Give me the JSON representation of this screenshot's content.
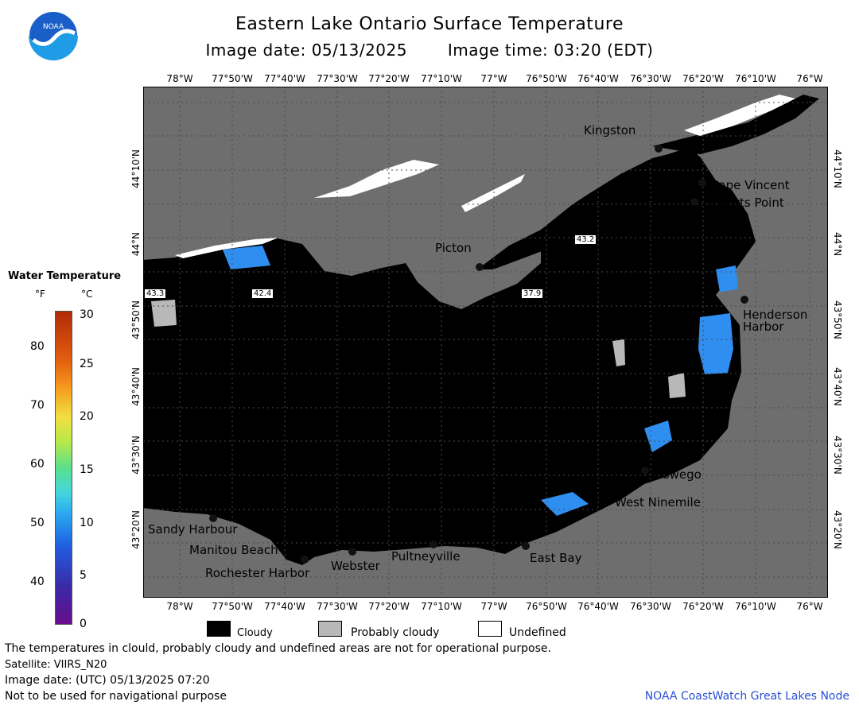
{
  "title": "Eastern Lake Ontario Surface Temperature",
  "image_date_label": "Image date: 05/13/2025",
  "image_time_label": "Image time: 03:20 (EDT)",
  "logo": {
    "text": "NOAA",
    "icon": "noaa-logo-icon"
  },
  "axes": {
    "longitude_ticks": [
      "78°W",
      "77°50'W",
      "77°40'W",
      "77°30'W",
      "77°20'W",
      "77°10'W",
      "77°W",
      "76°50'W",
      "76°40'W",
      "76°30'W",
      "76°20'W",
      "76°10'W",
      "76°W"
    ],
    "latitude_ticks": [
      "44°10'N",
      "44°N",
      "43°50'N",
      "43°40'N",
      "43°30'N",
      "43°20'N"
    ]
  },
  "places": {
    "kingston": "Kingston",
    "cape_vincent": "Cape Vincent",
    "tibbetts_point": "Tibbetts Point",
    "picton": "Picton",
    "henderson_harbor_1": "Henderson",
    "henderson_harbor_2": "Harbor",
    "oswego": "Oswego",
    "west_ninemile": "West Ninemile",
    "sandy_harbour": "Sandy Harbour",
    "manitou_beach": "Manitou Beach",
    "rochester_harbor": "Rochester Harbor",
    "webster": "Webster",
    "pultneyville": "Pultneyville",
    "east_bay": "East Bay"
  },
  "buoy_readings": {
    "b1": "43.3",
    "b2": "42.4",
    "b3": "37.9",
    "b4": "43.2"
  },
  "legend": {
    "title": "Water Temperature",
    "unit_f": "°F",
    "unit_c": "°C",
    "f_ticks": [
      "80",
      "70",
      "60",
      "50",
      "40"
    ],
    "c_ticks": [
      "30",
      "25",
      "20",
      "15",
      "10",
      "5",
      "0"
    ],
    "cloudy": "Cloudy",
    "probably_cloudy": "Probably cloudy",
    "undefined": "Undefined"
  },
  "footer": {
    "disclaimer": "The temperatures in clould, probably cloudy and undefined areas are not for operational purpose.",
    "satellite": "Satellite: VIIRS_N20",
    "utc_date": "Image date: (UTC) 05/13/2025  07:20",
    "navigation": "Not to be used for navigational purpose",
    "credit": "NOAA CoastWatch Great Lakes Node"
  },
  "colors": {
    "land": "#6e6e6e",
    "cloudy": "#000000",
    "probably_cloudy": "#b8b8b8",
    "undefined": "#ffffff",
    "water_cold": "#2f8ff0",
    "credit": "#2a4fd6"
  }
}
